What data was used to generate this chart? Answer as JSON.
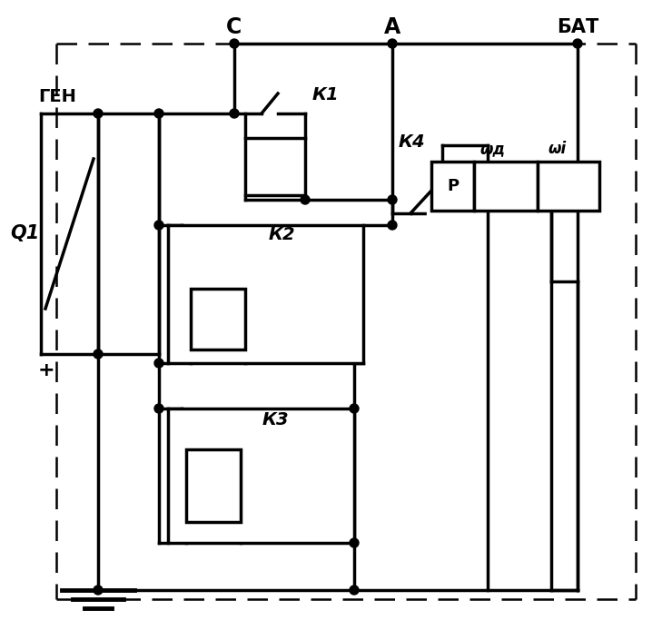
{
  "bg_color": "#ffffff",
  "line_color": "#000000",
  "lw": 2.5,
  "fig_width": 7.4,
  "fig_height": 7.05,
  "labels": {
    "GEN": "ГЕН",
    "Q1": "Q1",
    "plus": "+",
    "minus": "−",
    "C": "С",
    "A": "А",
    "BAT": "БАТ",
    "K1": "К1",
    "K2": "К2",
    "K3": "К3",
    "K4": "К4",
    "P": "Р",
    "wd": "ωд",
    "wi": "ωi"
  }
}
